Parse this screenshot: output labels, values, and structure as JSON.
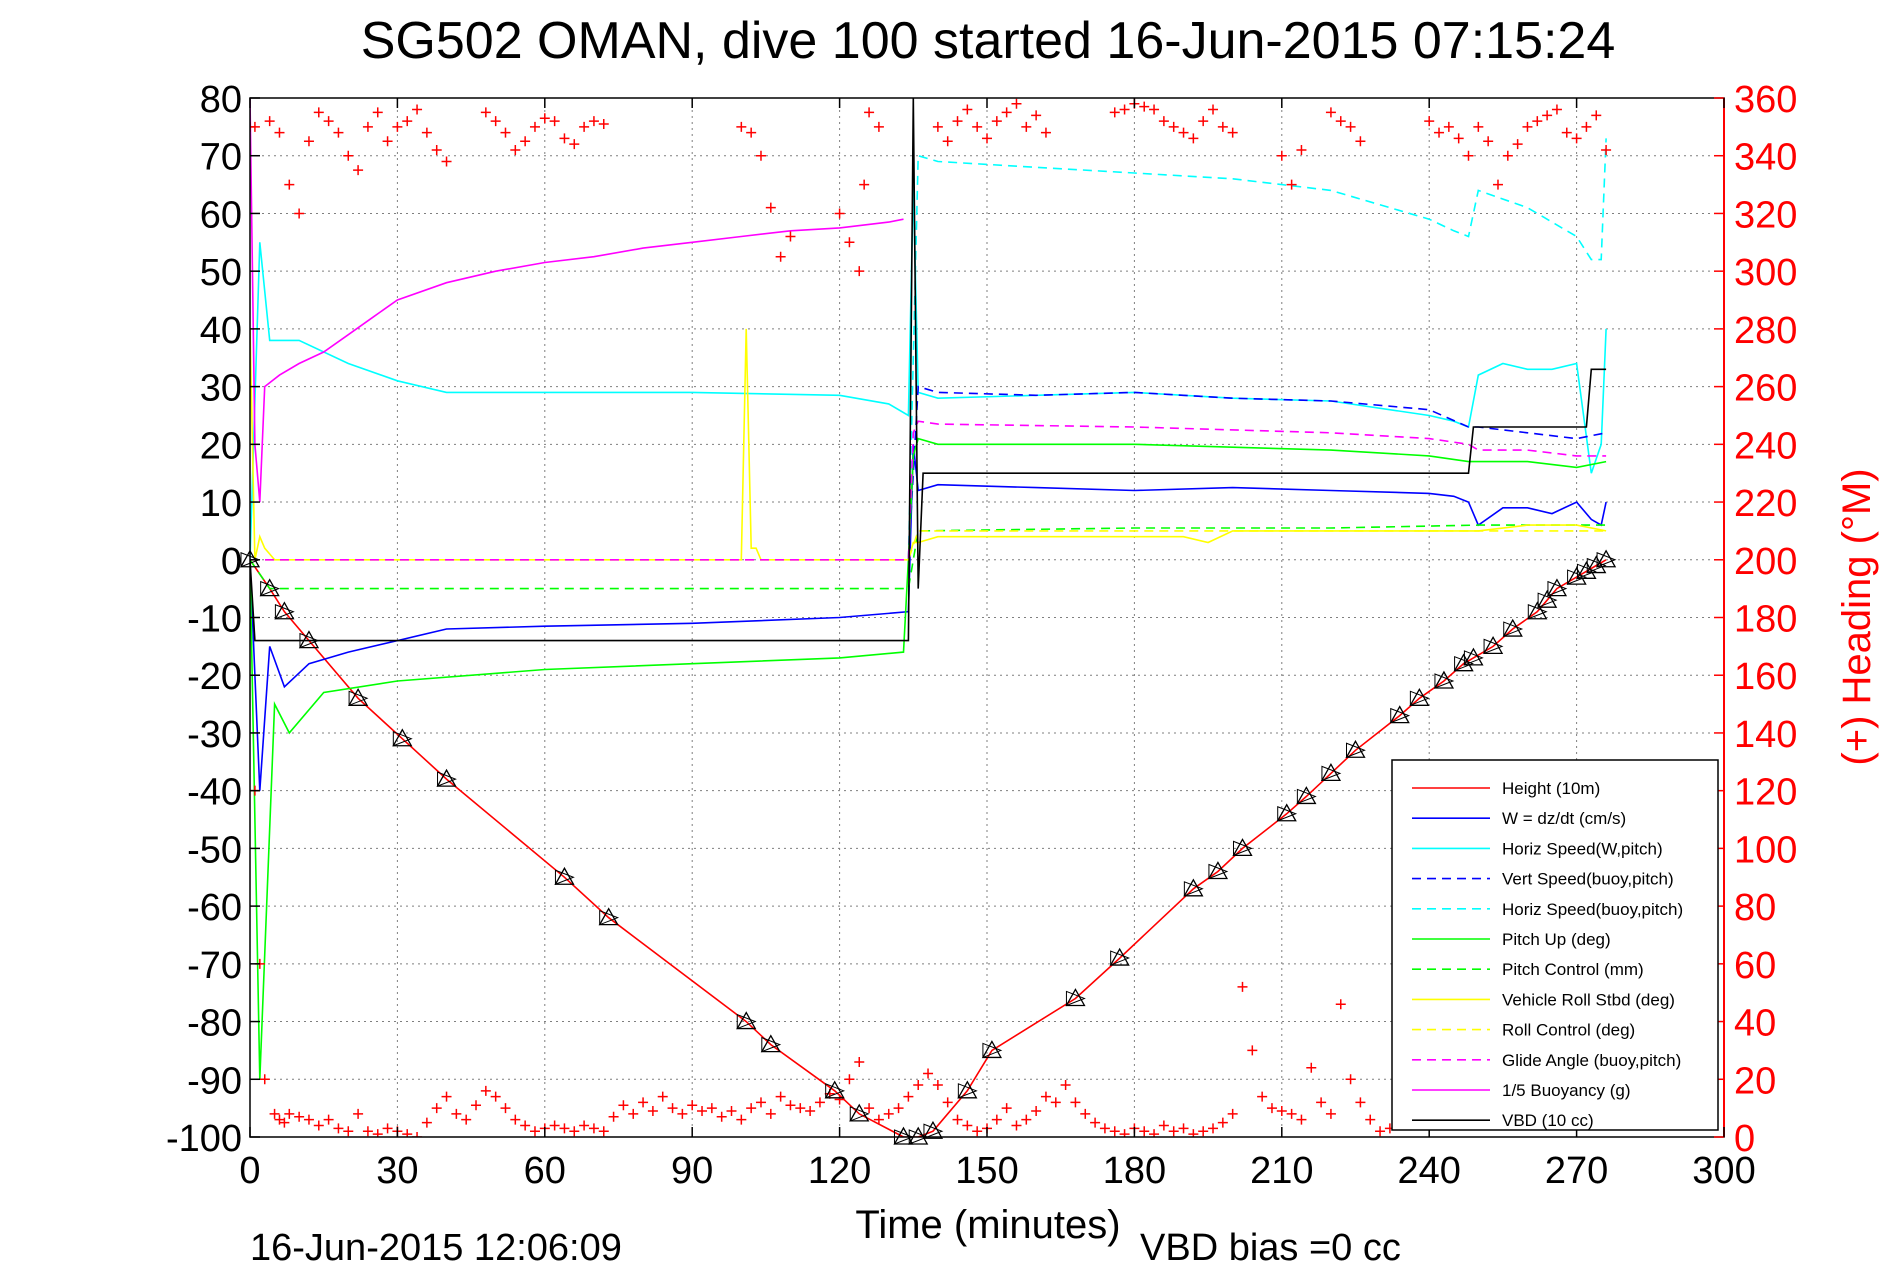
{
  "chart_data": {
    "type": "line",
    "title": "SG502 OMAN, dive 100 started 16-Jun-2015 07:15:24",
    "xlabel": "Time (minutes)",
    "ylabel_right": "(+) Heading (°M)",
    "footer_left": "16-Jun-2015 12:06:09",
    "footer_right": "VBD bias =0 cc",
    "xlim": [
      0,
      300
    ],
    "ylim": [
      -100,
      80
    ],
    "y2lim": [
      0,
      360
    ],
    "xticks": [
      0,
      30,
      60,
      90,
      120,
      150,
      180,
      210,
      240,
      270,
      300
    ],
    "yticks": [
      -100,
      -90,
      -80,
      -70,
      -60,
      -50,
      -40,
      -30,
      -20,
      -10,
      0,
      10,
      20,
      30,
      40,
      50,
      60,
      70,
      80
    ],
    "y2ticks": [
      0,
      20,
      40,
      60,
      80,
      100,
      120,
      140,
      160,
      180,
      200,
      220,
      240,
      260,
      280,
      300,
      320,
      340,
      360
    ],
    "grid": true,
    "legend_position": "bottom-right",
    "colors": {
      "axis": "#000000",
      "grid": "#7f7f7f",
      "right_axis": "#ff0000",
      "height": "#ff0000",
      "w": "#0000ff",
      "horiz": "#00ffff",
      "pitch": "#00ff00",
      "roll": "#ffff00",
      "glide": "#ff00ff",
      "buoyancy": "#ff00ff",
      "vbd": "#000000",
      "heading": "#ff0000"
    },
    "series": [
      {
        "name": "Height (10m)",
        "color": "#ff0000",
        "style": "solid",
        "marker": "triangles",
        "x": [
          0,
          4,
          7,
          12,
          22,
          31,
          40,
          64,
          73,
          101,
          106,
          119,
          124,
          133,
          136,
          139,
          146,
          151,
          168,
          177,
          192,
          197,
          202,
          211,
          215,
          220,
          225,
          234,
          238,
          243,
          247,
          249,
          253,
          257,
          262,
          264,
          266,
          270,
          272,
          274,
          276
        ],
        "values": [
          0,
          -5,
          -9,
          -14,
          -24,
          -31,
          -38,
          -55,
          -62,
          -80,
          -84,
          -92,
          -96,
          -100,
          -100,
          -99,
          -92,
          -85,
          -76,
          -69,
          -57,
          -54,
          -50,
          -44,
          -41,
          -37,
          -33,
          -27,
          -24,
          -21,
          -18,
          -17,
          -15,
          -12,
          -9,
          -7,
          -5,
          -3,
          -2,
          -1,
          0
        ]
      },
      {
        "name": "W = dz/dt (cm/s)",
        "color": "#0000ff",
        "style": "solid",
        "x": [
          0,
          2,
          4,
          7,
          12,
          20,
          30,
          40,
          60,
          90,
          120,
          134,
          135,
          136,
          140,
          160,
          180,
          200,
          220,
          240,
          245,
          248,
          250,
          255,
          260,
          265,
          270,
          273,
          275,
          276
        ],
        "values": [
          0,
          -40,
          -15,
          -22,
          -18,
          -16,
          -14,
          -12,
          -11.5,
          -11,
          -10,
          -9,
          20,
          12,
          13,
          12.5,
          12,
          12.5,
          12,
          11.5,
          11,
          10,
          6,
          9,
          9,
          8,
          10,
          7,
          6,
          10
        ]
      },
      {
        "name": "Horiz Speed(W,pitch)",
        "color": "#00ffff",
        "style": "solid",
        "x": [
          0,
          2,
          4,
          10,
          20,
          30,
          40,
          60,
          90,
          120,
          130,
          134,
          135,
          136,
          140,
          160,
          180,
          200,
          220,
          240,
          245,
          248,
          250,
          255,
          260,
          265,
          270,
          273,
          275,
          276
        ],
        "values": [
          0,
          55,
          38,
          38,
          34,
          31,
          29,
          29,
          29,
          28.5,
          27,
          25,
          65,
          29,
          28,
          28.5,
          29,
          28,
          27.5,
          25,
          24,
          23,
          32,
          34,
          33,
          33,
          34,
          15,
          20,
          40
        ]
      },
      {
        "name": "Vert Speed(buoy,pitch)",
        "color": "#0000ff",
        "style": "dashed",
        "x": [
          134,
          136,
          140,
          160,
          180,
          200,
          220,
          240,
          248,
          250,
          260,
          270,
          276
        ],
        "values": [
          0,
          30,
          29,
          28.5,
          29,
          28,
          27.5,
          26,
          23,
          23,
          22,
          21,
          22
        ]
      },
      {
        "name": "Horiz Speed(buoy,pitch)",
        "color": "#00ffff",
        "style": "dashed",
        "x": [
          134,
          136,
          140,
          160,
          180,
          200,
          220,
          240,
          245,
          248,
          250,
          260,
          270,
          273,
          275,
          276
        ],
        "values": [
          0,
          70,
          69,
          68,
          67,
          66,
          64,
          59,
          57,
          56,
          64,
          61,
          56,
          52,
          52,
          73
        ]
      },
      {
        "name": "Pitch Up (deg)",
        "color": "#00ff00",
        "style": "solid",
        "x": [
          0,
          2,
          5,
          8,
          15,
          30,
          60,
          90,
          120,
          133,
          134,
          135,
          136,
          140,
          180,
          220,
          240,
          248,
          250,
          260,
          270,
          276
        ],
        "values": [
          0,
          -90,
          -25,
          -30,
          -23,
          -21,
          -19,
          -18,
          -17,
          -16,
          0,
          18,
          21,
          20,
          20,
          19,
          18,
          17,
          17,
          17,
          16,
          17
        ]
      },
      {
        "name": "Pitch Control (mm)",
        "color": "#00ff00",
        "style": "dashed",
        "x": [
          0,
          4,
          8,
          134,
          136,
          180,
          220,
          250,
          276
        ],
        "values": [
          0,
          -5,
          -5,
          -5,
          5,
          5.5,
          5.5,
          6,
          6
        ]
      },
      {
        "name": "Vehicle Roll Stbd (deg)",
        "color": "#ffff00",
        "style": "solid",
        "x": [
          0,
          1,
          2,
          3,
          4,
          5,
          100,
          101,
          102,
          103,
          104,
          134,
          135,
          136,
          140,
          190,
          195,
          200,
          250,
          260,
          270,
          276
        ],
        "values": [
          40,
          0,
          4,
          2,
          1,
          0,
          0,
          40,
          2,
          2,
          0,
          0,
          3,
          3,
          4,
          4,
          3,
          5,
          5,
          6,
          6,
          5
        ]
      },
      {
        "name": "Roll Control (deg)",
        "color": "#ffff00",
        "style": "dashed",
        "x": [
          0,
          5,
          134,
          136,
          276
        ],
        "values": [
          0,
          0,
          0,
          5,
          5
        ]
      },
      {
        "name": "Glide Angle (buoy,pitch)",
        "color": "#ff00ff",
        "style": "dashed",
        "x": [
          0,
          134,
          135,
          136,
          140,
          180,
          220,
          240,
          248,
          250,
          260,
          270,
          276
        ],
        "values": [
          0,
          0,
          22,
          24,
          23.5,
          23,
          22,
          21,
          20,
          19,
          19,
          18,
          18
        ]
      },
      {
        "name": "1/5 Buoyancy (g)",
        "color": "#ff00ff",
        "style": "solid",
        "x": [
          0,
          1,
          2,
          3,
          6,
          10,
          15,
          20,
          25,
          30,
          40,
          50,
          60,
          70,
          80,
          90,
          100,
          110,
          120,
          130,
          133
        ],
        "values": [
          80,
          20,
          10,
          30,
          32,
          34,
          36,
          39,
          42,
          45,
          48,
          50,
          51.5,
          52.5,
          54,
          55,
          56,
          57,
          57.5,
          58.5,
          59
        ]
      },
      {
        "name": "VBD (10 cc)",
        "color": "#000000",
        "style": "solid",
        "x": [
          0,
          1,
          2,
          134,
          135,
          136,
          137,
          138,
          248,
          249,
          250,
          272,
          273,
          274,
          276
        ],
        "values": [
          0,
          -14,
          -14,
          -14,
          80,
          -5,
          15,
          15,
          15,
          23,
          23,
          23,
          33,
          33,
          33
        ]
      }
    ],
    "heading_series": {
      "name": "(+) Heading (°M)",
      "axis": "right",
      "color": "#ff0000",
      "marker": "+",
      "x": [
        0,
        1,
        2,
        3,
        5,
        6,
        7,
        8,
        10,
        12,
        14,
        16,
        18,
        20,
        22,
        24,
        26,
        28,
        30,
        32,
        34,
        36,
        38,
        40,
        42,
        44,
        46,
        48,
        50,
        52,
        54,
        56,
        58,
        60,
        62,
        64,
        66,
        68,
        70,
        72,
        74,
        76,
        78,
        80,
        82,
        84,
        86,
        88,
        90,
        92,
        94,
        96,
        98,
        100,
        102,
        104,
        106,
        108,
        110,
        112,
        114,
        116,
        118,
        120,
        122,
        124,
        126,
        128,
        130,
        132,
        134,
        136,
        138,
        140,
        142,
        144,
        146,
        148,
        150,
        152,
        154,
        156,
        158,
        160,
        162,
        164,
        166,
        168,
        170,
        172,
        174,
        176,
        178,
        180,
        182,
        184,
        186,
        188,
        190,
        192,
        194,
        196,
        198,
        200,
        202,
        204,
        206,
        208,
        210,
        212,
        214,
        216,
        218,
        220,
        222,
        224,
        226,
        228,
        230,
        232,
        234,
        236,
        238,
        240,
        242,
        244,
        246,
        248,
        250,
        252,
        254,
        256,
        258,
        260,
        262,
        264,
        266,
        268,
        270,
        272,
        274,
        276
      ],
      "values": [
        350,
        120,
        60,
        20,
        8,
        6,
        5,
        8,
        7,
        6,
        4,
        6,
        3,
        2,
        8,
        2,
        1,
        3,
        2,
        1,
        0,
        5,
        10,
        14,
        8,
        6,
        11,
        16,
        14,
        10,
        6,
        4,
        2,
        3,
        4,
        3,
        2,
        4,
        3,
        2,
        7,
        11,
        8,
        12,
        9,
        14,
        10,
        8,
        11,
        9,
        10,
        7,
        9,
        6,
        10,
        12,
        8,
        14,
        11,
        10,
        9,
        12,
        15,
        13,
        20,
        26,
        10,
        6,
        8,
        10,
        14,
        18,
        22,
        18,
        12,
        6,
        4,
        2,
        3,
        6,
        10,
        4,
        6,
        9,
        14,
        12,
        18,
        12,
        8,
        5,
        3,
        2,
        1,
        3,
        2,
        1,
        4,
        2,
        3,
        1,
        2,
        3,
        5,
        8,
        52,
        30,
        14,
        10,
        9,
        8,
        6,
        24,
        12,
        8,
        46,
        20,
        12,
        6,
        2,
        3,
        9,
        5,
        8,
        14,
        22,
        18,
        12,
        30,
        24,
        36,
        22,
        40,
        30,
        44,
        36,
        28,
        42,
        32,
        38,
        44,
        40,
        12
      ]
    },
    "heading_top_series": {
      "axis": "right",
      "color": "#ff0000",
      "marker": "+",
      "x": [
        1,
        4,
        6,
        8,
        10,
        12,
        14,
        16,
        18,
        20,
        22,
        24,
        26,
        28,
        30,
        32,
        34,
        36,
        38,
        40,
        48,
        50,
        52,
        54,
        56,
        58,
        60,
        62,
        64,
        66,
        68,
        70,
        72,
        100,
        102,
        104,
        106,
        108,
        110,
        120,
        122,
        124,
        125,
        126,
        128,
        140,
        142,
        144,
        146,
        148,
        150,
        152,
        154,
        156,
        158,
        160,
        162,
        176,
        178,
        180,
        182,
        184,
        186,
        188,
        190,
        192,
        194,
        196,
        198,
        200,
        210,
        212,
        214,
        220,
        222,
        224,
        226,
        240,
        242,
        244,
        246,
        248,
        250,
        252,
        254,
        256,
        258,
        260,
        262,
        264,
        266,
        268,
        270,
        272,
        274,
        276
      ],
      "values": [
        350,
        352,
        348,
        330,
        320,
        345,
        355,
        352,
        348,
        340,
        335,
        350,
        355,
        345,
        350,
        352,
        356,
        348,
        342,
        338,
        355,
        352,
        348,
        342,
        345,
        350,
        353,
        352,
        346,
        344,
        350,
        352,
        351,
        350,
        348,
        340,
        322,
        305,
        312,
        320,
        310,
        300,
        330,
        355,
        350,
        350,
        345,
        352,
        356,
        350,
        346,
        352,
        355,
        358,
        350,
        354,
        348,
        355,
        356,
        358,
        357,
        356,
        352,
        350,
        348,
        346,
        352,
        356,
        350,
        348,
        340,
        330,
        342,
        355,
        352,
        350,
        345,
        352,
        348,
        350,
        346,
        340,
        350,
        345,
        330,
        340,
        344,
        350,
        352,
        354,
        356,
        348,
        346,
        350,
        354,
        342
      ]
    }
  }
}
